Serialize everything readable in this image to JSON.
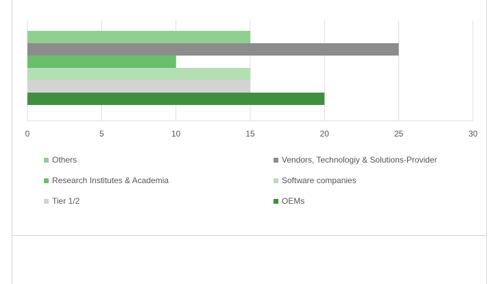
{
  "chart_data": {
    "type": "bar",
    "orientation": "horizontal",
    "title": "",
    "xlabel": "",
    "ylabel": "",
    "xlim": [
      0,
      30
    ],
    "xticks": [
      0,
      5,
      10,
      15,
      20,
      25,
      30
    ],
    "grid": "vertical",
    "legend_position": "bottom",
    "series": [
      {
        "name": "Others",
        "value": 15,
        "color": "#8fcf8f"
      },
      {
        "name": "Vendors, Technologiy & Solutions-Provider",
        "value": 25,
        "color": "#8c8c8c"
      },
      {
        "name": "Research Institutes & Academia",
        "value": 10,
        "color": "#6bbf6b"
      },
      {
        "name": "Software companies",
        "value": 15,
        "color": "#b3e0b3"
      },
      {
        "name": "Tier 1/2",
        "value": 15,
        "color": "#d3d3d3"
      },
      {
        "name": "OEMs",
        "value": 20,
        "color": "#3f8f3f"
      }
    ]
  }
}
